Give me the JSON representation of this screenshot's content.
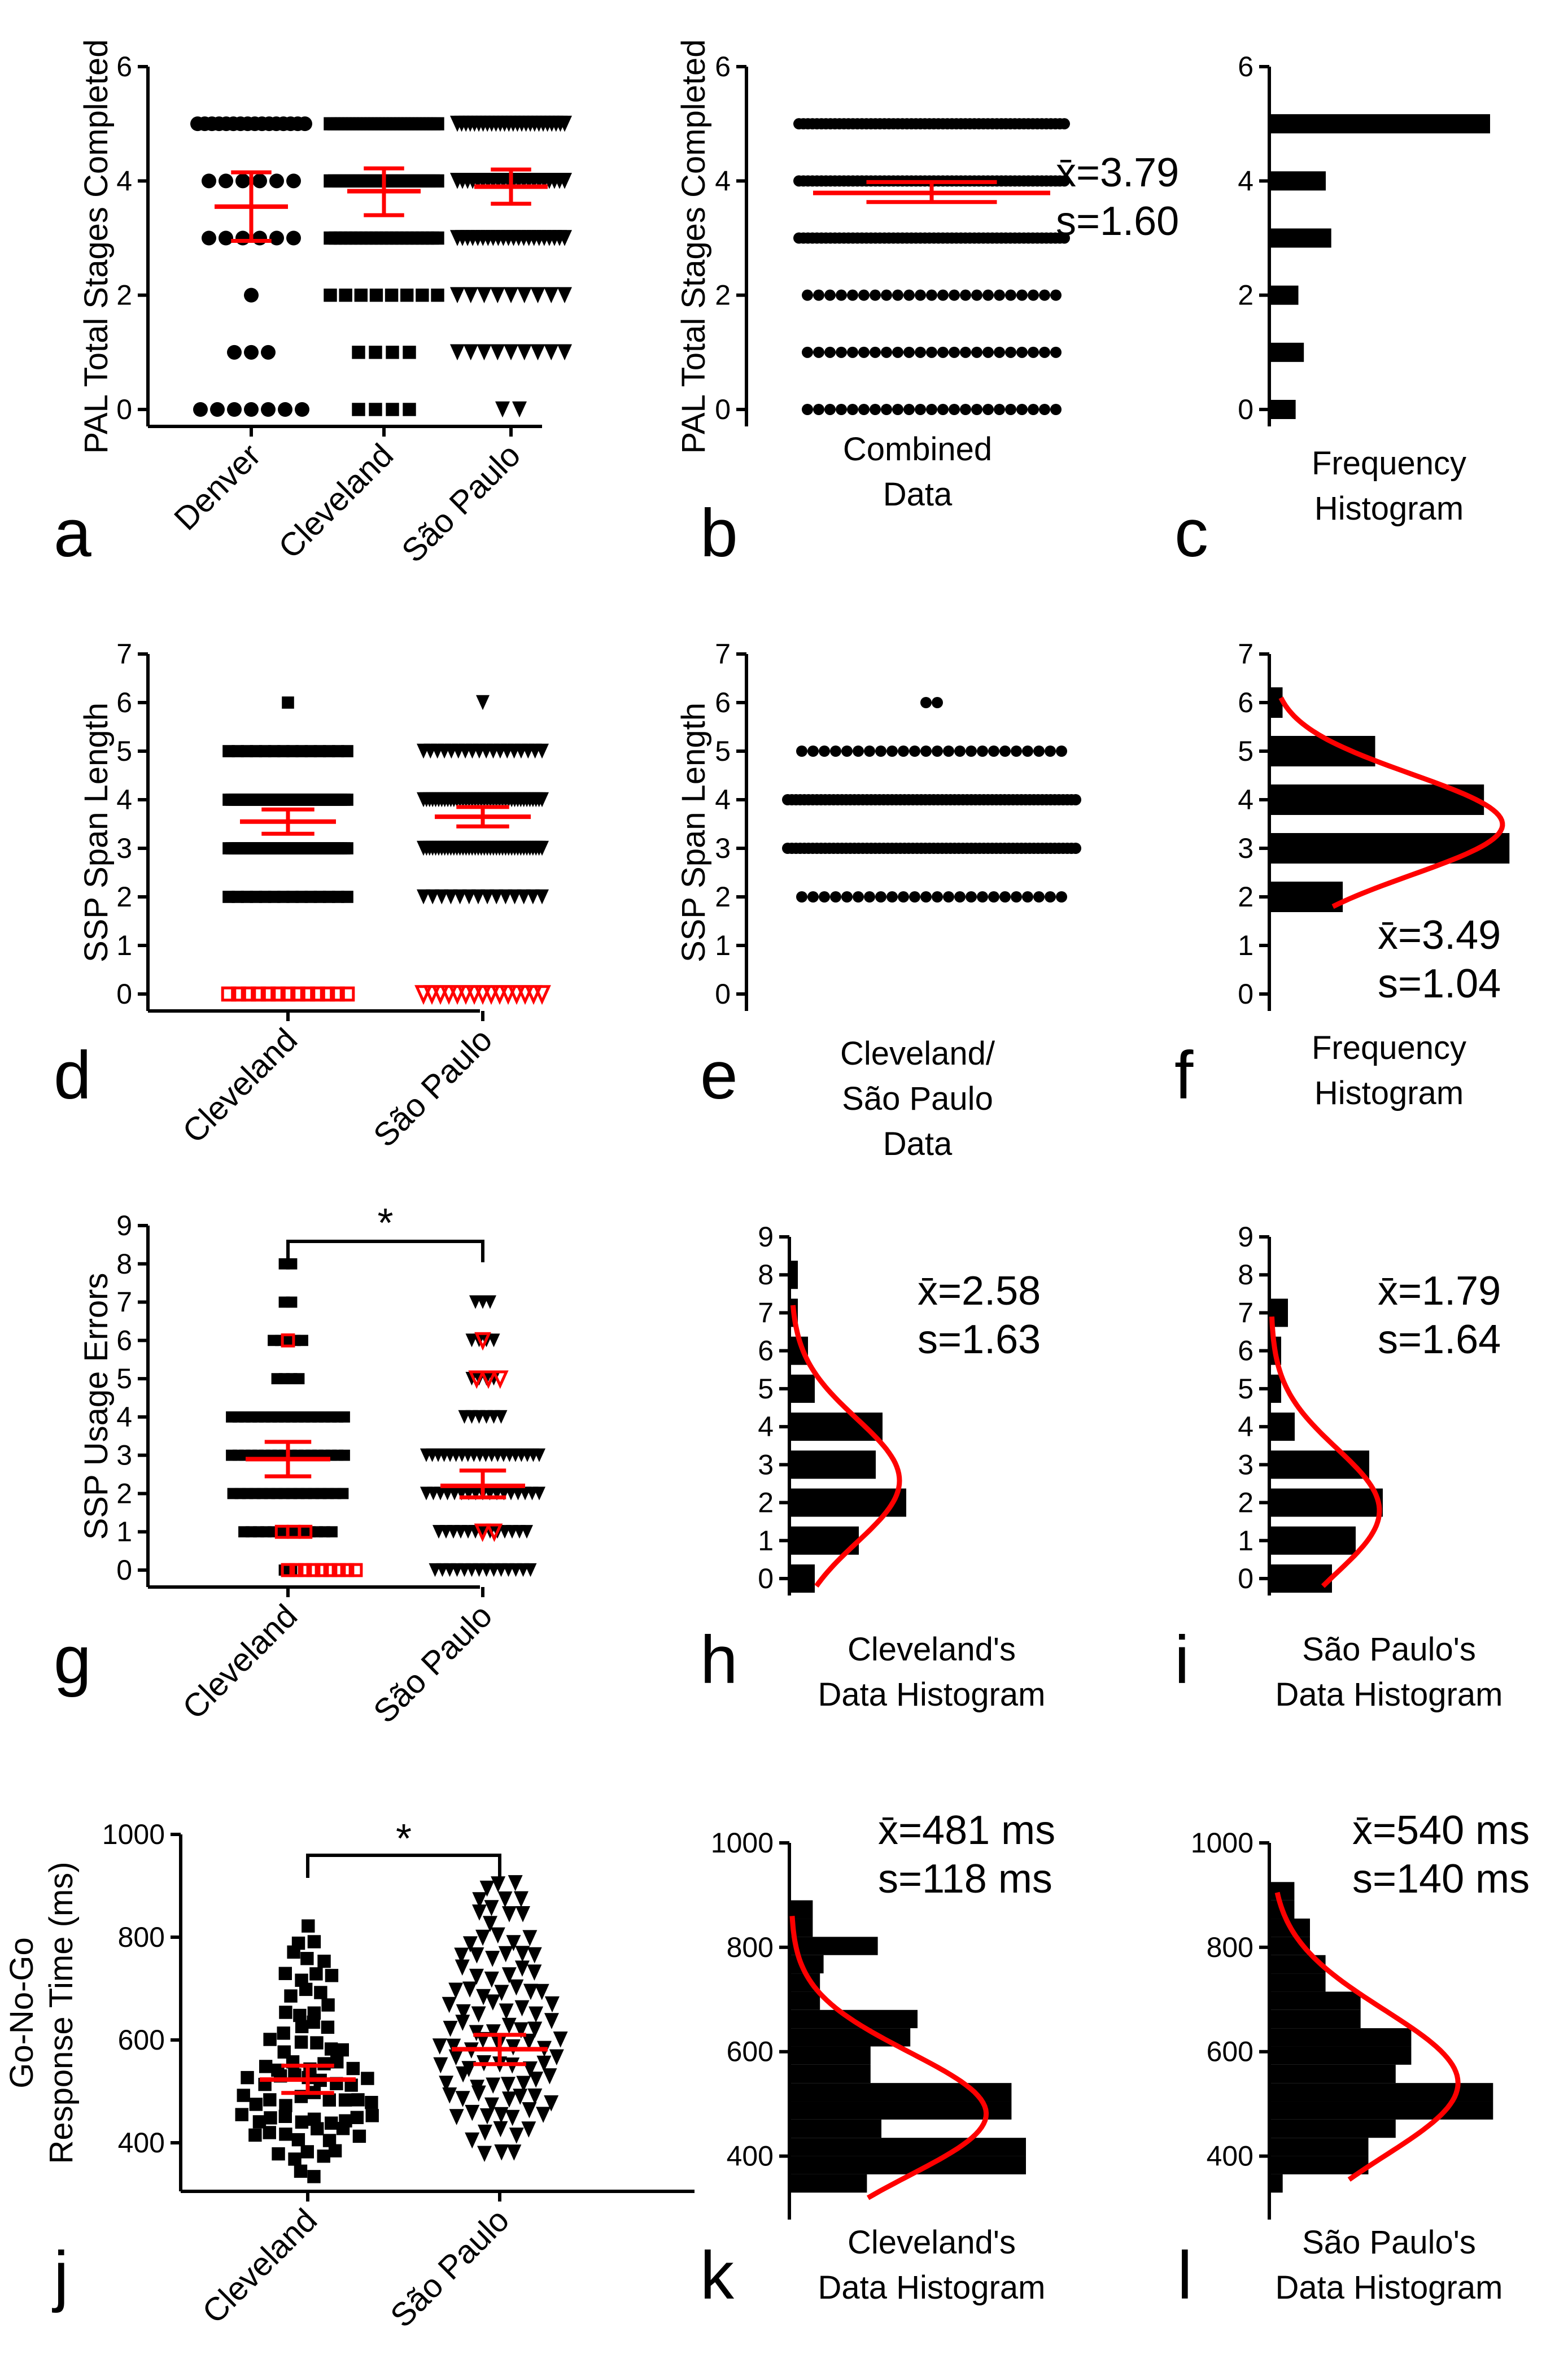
{
  "panel_letters": [
    "a",
    "b",
    "c",
    "d",
    "e",
    "f",
    "g",
    "h",
    "i",
    "j",
    "k",
    "l"
  ],
  "colors": {
    "mark": "#000000",
    "accent": "#ff0000"
  },
  "chart_data": [
    {
      "id": "a",
      "type": "scatter",
      "ylabel": "PAL Total Stages Completed",
      "ylim": [
        0,
        6
      ],
      "yticks": [
        0,
        2,
        4,
        6
      ],
      "categories": [
        "Denver",
        "Cleveland",
        "São Paulo"
      ],
      "marker_shapes": [
        "circle",
        "square",
        "triangle-down"
      ],
      "counts": [
        {
          "0": 7,
          "1": 3,
          "2": 1,
          "3": 6,
          "4": 6,
          "5": 16
        },
        {
          "0": 4,
          "1": 4,
          "2": 8,
          "3": 22,
          "4": 26,
          "5": 30
        },
        {
          "0": 2,
          "1": 9,
          "2": 9,
          "3": 22,
          "4": 22,
          "5": 26
        }
      ],
      "mean": [
        3.55,
        3.82,
        3.9
      ],
      "err_low": [
        2.95,
        3.4,
        3.6
      ],
      "err_high": [
        4.15,
        4.22,
        4.2
      ]
    },
    {
      "id": "b",
      "type": "scatter",
      "ylabel": "PAL Total Stages Completed",
      "ylim": [
        0,
        6
      ],
      "yticks": [
        0,
        2,
        4,
        6
      ],
      "categories": [
        "Combined",
        "Data"
      ],
      "marker_shapes": [
        "circle"
      ],
      "counts": [
        {
          "0": 23,
          "1": 23,
          "2": 23,
          "3": 60,
          "4": 60,
          "5": 60
        }
      ],
      "mean": [
        3.79
      ],
      "err_low": [
        3.63
      ],
      "err_high": [
        3.98
      ],
      "annotation": [
        "x̄=3.79",
        "s=1.60"
      ]
    },
    {
      "id": "c",
      "type": "bar",
      "orientation": "horizontal",
      "xlabel": [
        "Frequency",
        "Histogram"
      ],
      "ylim": [
        0,
        6
      ],
      "yticks": [
        0,
        2,
        4,
        6
      ],
      "categories": [
        0,
        1,
        2,
        3,
        4,
        5
      ],
      "values": [
        9,
        12,
        10,
        22,
        20,
        80
      ]
    },
    {
      "id": "d",
      "type": "scatter",
      "ylabel": "SSP Span Length",
      "ylim": [
        0,
        7
      ],
      "yticks": [
        0,
        1,
        2,
        3,
        4,
        5,
        6,
        7
      ],
      "categories": [
        "Cleveland",
        "São Paulo"
      ],
      "marker_shapes": [
        "square",
        "triangle-down"
      ],
      "counts": [
        {
          "2": 14,
          "3": 40,
          "4": 40,
          "5": 14,
          "6": 1
        },
        {
          "2": 14,
          "3": 40,
          "4": 40,
          "5": 18,
          "6": 1
        }
      ],
      "zero_counts_red_open": [
        13,
        15
      ],
      "mean": [
        3.55,
        3.65
      ],
      "err_low": [
        3.3,
        3.45
      ],
      "err_high": [
        3.8,
        3.85
      ]
    },
    {
      "id": "e",
      "type": "scatter",
      "ylabel": "SSP Span Length",
      "ylim": [
        0,
        7
      ],
      "yticks": [
        0,
        1,
        2,
        3,
        4,
        5,
        6,
        7
      ],
      "categories": [
        "Cleveland/",
        "São Paulo",
        "Data"
      ],
      "marker_shapes": [
        "circle"
      ],
      "counts": [
        {
          "2": 24,
          "3": 70,
          "4": 70,
          "5": 24,
          "6": 2
        }
      ]
    },
    {
      "id": "f",
      "type": "bar",
      "orientation": "horizontal",
      "xlabel": [
        "Frequency",
        "Histogram"
      ],
      "ylim": [
        0,
        7
      ],
      "yticks": [
        0,
        1,
        2,
        3,
        4,
        5,
        6,
        7
      ],
      "categories": [
        2,
        3,
        4,
        5,
        6
      ],
      "values": [
        31,
        103,
        92,
        45,
        5
      ],
      "fit_mean": 3.49,
      "fit_sd": 1.04,
      "fit_peak": 100,
      "annotation": [
        "x̄=3.49",
        "s=1.04"
      ]
    },
    {
      "id": "g",
      "type": "scatter",
      "ylabel": "SSP Usage Errors",
      "ylim": [
        0,
        9
      ],
      "yticks": [
        0,
        1,
        2,
        3,
        4,
        5,
        6,
        7,
        8,
        9
      ],
      "categories": [
        "Cleveland",
        "São Paulo"
      ],
      "marker_shapes": [
        "square",
        "triangle-down"
      ],
      "counts": [
        {
          "0": 2,
          "1": 13,
          "2": 16,
          "3": 18,
          "4": 18,
          "5": 4,
          "6": 5,
          "7": 2,
          "8": 2
        },
        {
          "0": 14,
          "1": 13,
          "2": 17,
          "3": 20,
          "4": 6,
          "5": 4,
          "6": 4,
          "7": 3
        }
      ],
      "red_open": [
        {
          "0": 9,
          "1": 3,
          "6": 1
        },
        {
          "1": 2,
          "5": 3,
          "6": 1
        }
      ],
      "mean": [
        2.9,
        2.2
      ],
      "err_low": [
        2.45,
        1.9
      ],
      "err_high": [
        3.35,
        2.6
      ],
      "significance": "*"
    },
    {
      "id": "h",
      "type": "bar",
      "orientation": "horizontal",
      "xlabel": [
        "Cleveland's",
        "Data Histogram"
      ],
      "ylim": [
        0,
        9
      ],
      "yticks": [
        0,
        1,
        2,
        3,
        4,
        5,
        6,
        7,
        8,
        9
      ],
      "categories": [
        0,
        1,
        2,
        3,
        4,
        5,
        6,
        7,
        8
      ],
      "values": [
        7,
        20,
        34,
        25,
        27,
        7,
        5,
        2,
        2
      ],
      "fit_mean": 2.58,
      "fit_sd": 1.63,
      "fit_peak": 32,
      "annotation": [
        "x̄=2.58",
        "s=1.63"
      ]
    },
    {
      "id": "i",
      "type": "bar",
      "orientation": "horizontal",
      "xlabel": [
        "São Paulo's",
        "Data Histogram"
      ],
      "ylim": [
        0,
        9
      ],
      "yticks": [
        0,
        1,
        2,
        3,
        4,
        5,
        6,
        7,
        8,
        9
      ],
      "categories": [
        0,
        1,
        2,
        3,
        4,
        5,
        6,
        7
      ],
      "values": [
        18,
        25,
        33,
        29,
        7,
        3,
        3,
        5
      ],
      "fit_mean": 1.79,
      "fit_sd": 1.64,
      "fit_peak": 32,
      "annotation": [
        "x̄=1.79",
        "s=1.64"
      ]
    },
    {
      "id": "j",
      "type": "scatter",
      "ylabel": [
        "Go-No-Go",
        "Response Time (ms)"
      ],
      "ylim": [
        300,
        1000
      ],
      "yticks": [
        400,
        600,
        800,
        1000
      ],
      "categories": [
        "Cleveland",
        "São Paulo"
      ],
      "marker_shapes": [
        "square",
        "triangle-down"
      ],
      "bin_centers": [
        345,
        380,
        415,
        450,
        485,
        520,
        555,
        590,
        625,
        660,
        695,
        730,
        765,
        800,
        835,
        870,
        900
      ],
      "bin_counts": [
        [
          2,
          5,
          8,
          10,
          10,
          9,
          7,
          6,
          4,
          4,
          3,
          4,
          3,
          2,
          1,
          0,
          0
        ],
        [
          0,
          3,
          5,
          7,
          8,
          8,
          9,
          9,
          8,
          8,
          7,
          6,
          6,
          5,
          4,
          4,
          3
        ]
      ],
      "mean": [
        523,
        582
      ],
      "err_low": [
        497,
        553
      ],
      "err_high": [
        550,
        610
      ],
      "significance": "*"
    },
    {
      "id": "k",
      "type": "bar",
      "orientation": "horizontal",
      "xlabel": [
        "Cleveland's",
        "Data Histogram"
      ],
      "ylim": [
        300,
        1000
      ],
      "yticks": [
        400,
        600,
        800,
        1000
      ],
      "bin_width": 35,
      "bins": [
        330,
        365,
        400,
        435,
        470,
        505,
        540,
        575,
        610,
        645,
        680,
        715,
        750,
        785,
        820,
        855
      ],
      "values": [
        21,
        65,
        65,
        25,
        61,
        61,
        22,
        22,
        33,
        35,
        8,
        8,
        9,
        24,
        6,
        6
      ],
      "fit_mean": 481,
      "fit_sd": 118,
      "fit_peak": 54,
      "annotation": [
        "x̄=481 ms",
        "s=118 ms"
      ]
    },
    {
      "id": "l",
      "type": "bar",
      "orientation": "horizontal",
      "xlabel": [
        "São Paulo's",
        "Data Histogram"
      ],
      "ylim": [
        300,
        1000
      ],
      "yticks": [
        400,
        600,
        800,
        1000
      ],
      "bin_width": 35,
      "bins": [
        330,
        365,
        400,
        435,
        470,
        505,
        540,
        575,
        610,
        645,
        680,
        715,
        750,
        785,
        820,
        855,
        890
      ],
      "values": [
        3,
        25,
        25,
        32,
        57,
        57,
        32,
        36,
        36,
        23,
        23,
        14,
        14,
        10,
        10,
        6,
        6
      ],
      "fit_mean": 540,
      "fit_sd": 140,
      "fit_peak": 48,
      "annotation": [
        "x̄=540 ms",
        "s=140 ms"
      ]
    }
  ]
}
